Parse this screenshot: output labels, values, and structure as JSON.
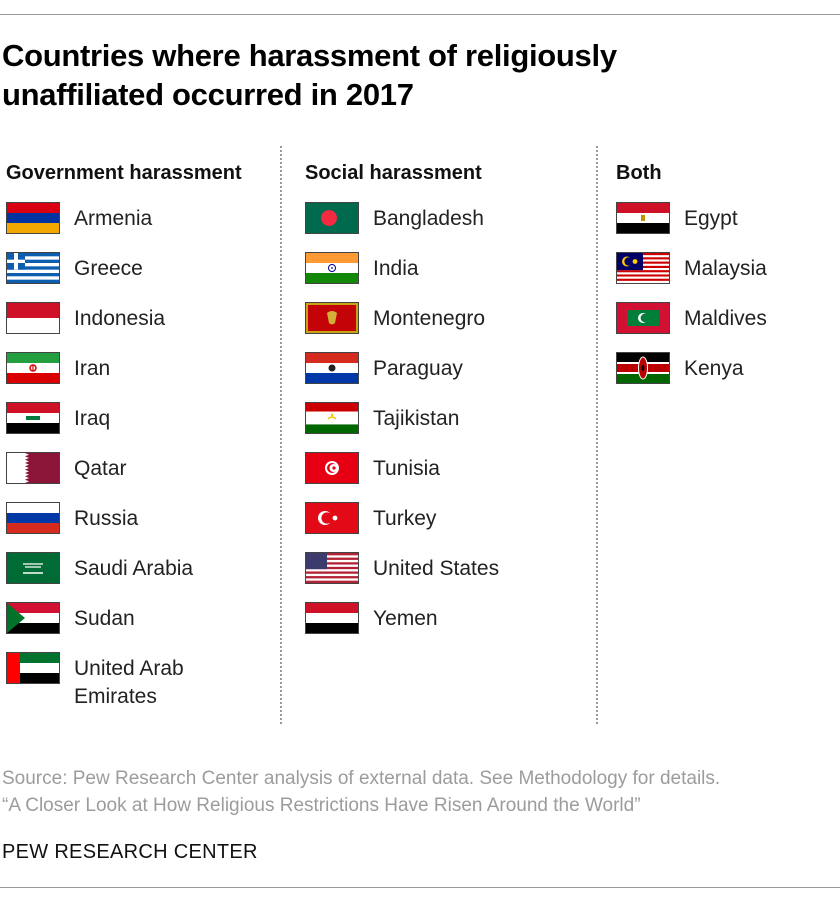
{
  "title_line1": "Countries where harassment of religiously",
  "title_line2": "unaffiliated occurred in 2017",
  "columns": [
    {
      "heading": "Government harassment",
      "countries": [
        {
          "name": "Armenia",
          "flag": "armenia-flag-icon"
        },
        {
          "name": "Greece",
          "flag": "greece-flag-icon"
        },
        {
          "name": "Indonesia",
          "flag": "indonesia-flag-icon"
        },
        {
          "name": "Iran",
          "flag": "iran-flag-icon"
        },
        {
          "name": "Iraq",
          "flag": "iraq-flag-icon"
        },
        {
          "name": "Qatar",
          "flag": "qatar-flag-icon"
        },
        {
          "name": "Russia",
          "flag": "russia-flag-icon"
        },
        {
          "name": "Saudi Arabia",
          "flag": "saudi-arabia-flag-icon"
        },
        {
          "name": "Sudan",
          "flag": "sudan-flag-icon"
        },
        {
          "name_line1": "United Arab",
          "name_line2": "Emirates",
          "flag": "uae-flag-icon"
        }
      ]
    },
    {
      "heading": "Social harassment",
      "countries": [
        {
          "name": "Bangladesh",
          "flag": "bangladesh-flag-icon"
        },
        {
          "name": "India",
          "flag": "india-flag-icon"
        },
        {
          "name": "Montenegro",
          "flag": "montenegro-flag-icon"
        },
        {
          "name": "Paraguay",
          "flag": "paraguay-flag-icon"
        },
        {
          "name": "Tajikistan",
          "flag": "tajikistan-flag-icon"
        },
        {
          "name": "Tunisia",
          "flag": "tunisia-flag-icon"
        },
        {
          "name": "Turkey",
          "flag": "turkey-flag-icon"
        },
        {
          "name": "United States",
          "flag": "united-states-flag-icon"
        },
        {
          "name": "Yemen",
          "flag": "yemen-flag-icon"
        }
      ]
    },
    {
      "heading": "Both",
      "countries": [
        {
          "name": "Egypt",
          "flag": "egypt-flag-icon"
        },
        {
          "name": "Malaysia",
          "flag": "malaysia-flag-icon"
        },
        {
          "name": "Maldives",
          "flag": "maldives-flag-icon"
        },
        {
          "name": "Kenya",
          "flag": "kenya-flag-icon"
        }
      ]
    }
  ],
  "source_line1": "Source: Pew Research Center analysis of external data. See Methodology for details.",
  "source_line2": "“A Closer Look at How Religious Restrictions Have Risen Around the World”",
  "organization": "PEW RESEARCH CENTER"
}
